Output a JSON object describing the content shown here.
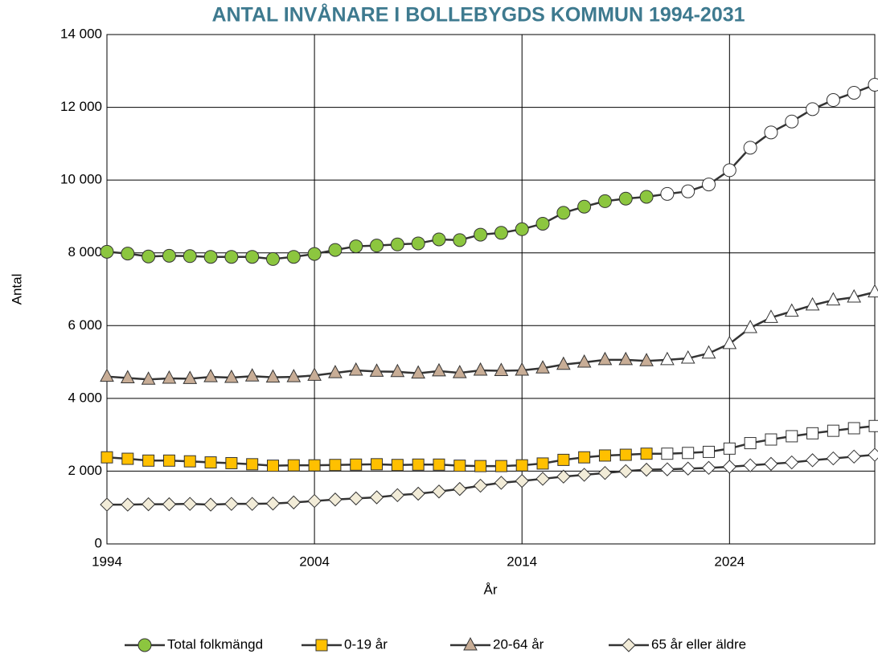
{
  "chart_data": {
    "type": "line",
    "title": "ANTAL INVÅNARE I BOLLEBYGDS KOMMUN 1994-2031",
    "x_label": "År",
    "y_label": "Antal",
    "x": [
      1994,
      1995,
      1996,
      1997,
      1998,
      1999,
      2000,
      2001,
      2002,
      2003,
      2004,
      2005,
      2006,
      2007,
      2008,
      2009,
      2010,
      2011,
      2012,
      2013,
      2014,
      2015,
      2016,
      2017,
      2018,
      2019,
      2020,
      2021,
      2022,
      2023,
      2024,
      2025,
      2026,
      2027,
      2028,
      2029,
      2030,
      2031
    ],
    "forecast_from": 2021,
    "forecast_color": "#ffffff",
    "line_color": "#333333",
    "grid": true,
    "legend": "bottom",
    "series": [
      {
        "name": "Total folkmängd",
        "color": "#8cc63f",
        "marker": "circle",
        "values": [
          8030,
          7980,
          7900,
          7920,
          7910,
          7890,
          7890,
          7890,
          7830,
          7890,
          7970,
          8080,
          8180,
          8200,
          8230,
          8260,
          8370,
          8350,
          8500,
          8550,
          8650,
          8800,
          9100,
          9270,
          9420,
          9490,
          9540,
          9620,
          9690,
          9880,
          10270,
          10890,
          11310,
          11610,
          11950,
          12200,
          12400,
          12620
        ]
      },
      {
        "name": "0-19 år",
        "color": "#ffc000",
        "marker": "square",
        "values": [
          2380,
          2340,
          2290,
          2290,
          2270,
          2240,
          2220,
          2190,
          2150,
          2160,
          2160,
          2170,
          2180,
          2190,
          2170,
          2180,
          2180,
          2150,
          2140,
          2140,
          2160,
          2210,
          2310,
          2380,
          2430,
          2450,
          2480,
          2480,
          2500,
          2530,
          2620,
          2770,
          2870,
          2960,
          3040,
          3110,
          3180,
          3240
        ]
      },
      {
        "name": "20-64 år",
        "color": "#c8ad96",
        "marker": "triangle",
        "values": [
          4600,
          4560,
          4520,
          4550,
          4540,
          4590,
          4570,
          4610,
          4580,
          4590,
          4630,
          4700,
          4770,
          4740,
          4730,
          4690,
          4750,
          4700,
          4770,
          4760,
          4770,
          4830,
          4930,
          4990,
          5060,
          5060,
          5030,
          5060,
          5100,
          5240,
          5500,
          5940,
          6220,
          6390,
          6560,
          6700,
          6780,
          6920
        ]
      },
      {
        "name": "65 år eller äldre",
        "color": "#f2ecd8",
        "marker": "diamond",
        "values": [
          1080,
          1080,
          1090,
          1090,
          1100,
          1080,
          1100,
          1100,
          1110,
          1140,
          1180,
          1220,
          1250,
          1280,
          1340,
          1380,
          1440,
          1510,
          1600,
          1680,
          1730,
          1790,
          1850,
          1900,
          1950,
          2000,
          2040,
          2050,
          2070,
          2090,
          2120,
          2160,
          2200,
          2240,
          2300,
          2350,
          2400,
          2450
        ]
      }
    ],
    "xlim": [
      1994,
      2031
    ],
    "xticks": [
      1994,
      2004,
      2014,
      2024
    ],
    "ylim": [
      0,
      14000
    ],
    "yticks": [
      0,
      {
        "value": 2000,
        "label": "2 000"
      },
      {
        "value": 4000,
        "label": "4 000"
      },
      {
        "value": 6000,
        "label": "6 000"
      },
      {
        "value": 8000,
        "label": "8 000"
      },
      {
        "value": 10000,
        "label": "10 000"
      },
      {
        "value": 12000,
        "label": "12 000"
      },
      {
        "value": 14000,
        "label": "14 000"
      }
    ]
  }
}
